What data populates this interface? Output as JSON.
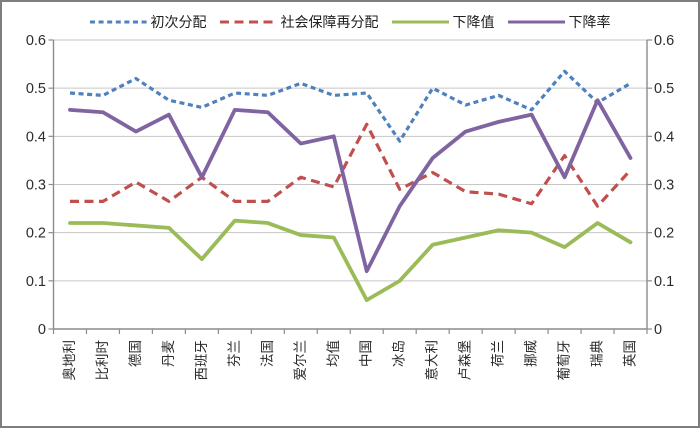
{
  "chart_data": {
    "type": "line",
    "title": "",
    "xlabel": "",
    "ylabel": "",
    "ylim": [
      0,
      0.6
    ],
    "yticks": [
      "0.6",
      "0.5",
      "0.4",
      "0.3",
      "0.2",
      "0.1",
      "0"
    ],
    "y_axis_sides": "both",
    "grid": "horizontal",
    "legend_position": "top",
    "categories": [
      "奥地利",
      "比利时",
      "德国",
      "丹麦",
      "西班牙",
      "芬兰",
      "法国",
      "爱尔兰",
      "均值",
      "中国",
      "冰岛",
      "意大利",
      "卢森堡",
      "荷兰",
      "挪威",
      "葡萄牙",
      "瑞典",
      "英国"
    ],
    "series": [
      {
        "id": "primary-distribution",
        "name": "初次分配",
        "color": "#4F81BD",
        "style": "dashed-short",
        "values": [
          0.49,
          0.485,
          0.52,
          0.475,
          0.46,
          0.49,
          0.485,
          0.51,
          0.485,
          0.49,
          0.39,
          0.5,
          0.465,
          0.485,
          0.455,
          0.535,
          0.47,
          0.51
        ]
      },
      {
        "id": "social-security-redistribution",
        "name": "社会保障再分配",
        "color": "#C0504D",
        "style": "dashed-long",
        "values": [
          0.265,
          0.265,
          0.305,
          0.265,
          0.315,
          0.265,
          0.265,
          0.315,
          0.295,
          0.425,
          0.29,
          0.325,
          0.285,
          0.28,
          0.26,
          0.36,
          0.255,
          0.33
        ]
      },
      {
        "id": "decline-value",
        "name": "下降值",
        "color": "#9BBB59",
        "style": "solid",
        "values": [
          0.22,
          0.22,
          0.215,
          0.21,
          0.145,
          0.225,
          0.22,
          0.195,
          0.19,
          0.06,
          0.1,
          0.175,
          0.19,
          0.205,
          0.2,
          0.17,
          0.22,
          0.18
        ]
      },
      {
        "id": "decline-rate",
        "name": "下降率",
        "color": "#8064A2",
        "style": "solid",
        "values": [
          0.455,
          0.45,
          0.41,
          0.445,
          0.315,
          0.455,
          0.45,
          0.385,
          0.4,
          0.12,
          0.255,
          0.355,
          0.41,
          0.43,
          0.445,
          0.315,
          0.475,
          0.355
        ]
      }
    ],
    "colors": {
      "grid": "#C6C6C6",
      "axis": "#8C8C8C",
      "text": "#2B2B2B",
      "background": "#FFFFFF",
      "border": "#7E7E7E"
    }
  }
}
